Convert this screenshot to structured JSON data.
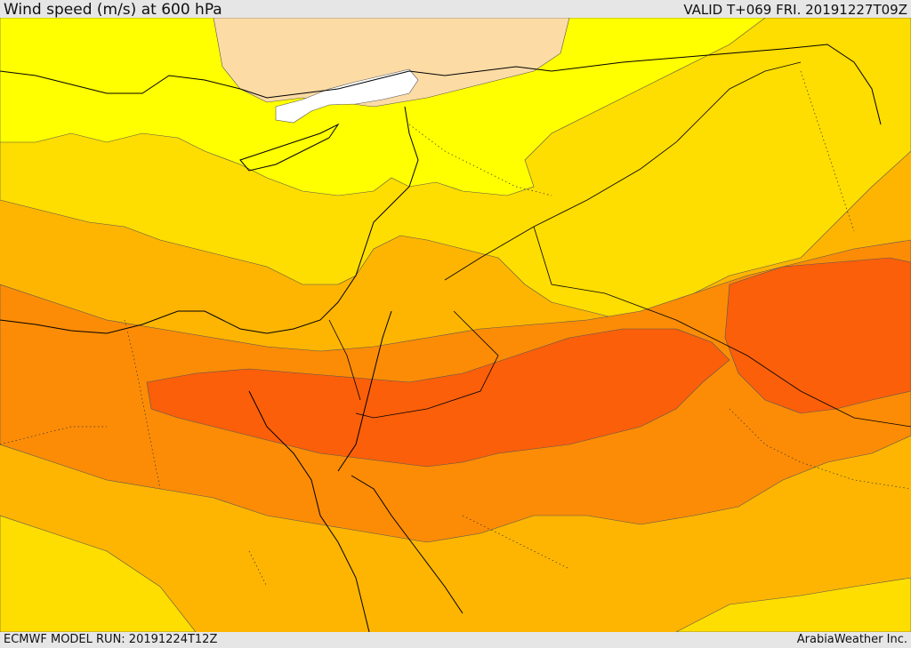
{
  "header": {
    "title": "Wind speed (m/s) at 600 hPa",
    "valid": "VALID T+069 FRI. 20191227T09Z"
  },
  "footer": {
    "model_run": "ECMWF MODEL RUN: 20191224T12Z",
    "credit": "ArabiaWeather Inc."
  },
  "map": {
    "variable": "wind speed",
    "level": "600 hPa",
    "colors": {
      "white": "#ffffff",
      "peach": "#fddba5",
      "yellow": "#ffff00",
      "gold": "#fedd00",
      "amber": "#fdb501",
      "orange": "#fc8c06",
      "dark_orange": "#fb5f0a",
      "lines": "#000000"
    }
  }
}
